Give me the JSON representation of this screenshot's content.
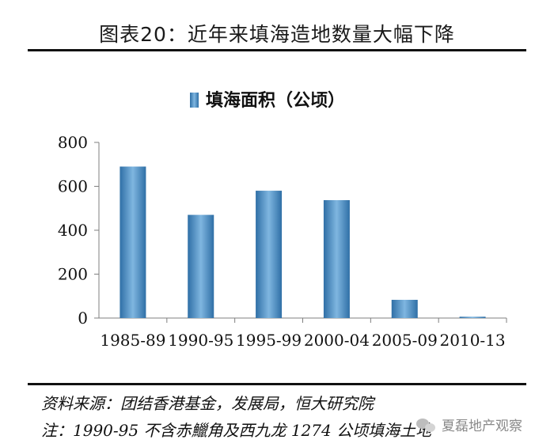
{
  "figure": {
    "title": "图表20：近年来填海造地数量大幅下降"
  },
  "chart_data": {
    "type": "bar",
    "categories": [
      "1985-89",
      "1990-95",
      "1995-99",
      "2000-04",
      "2005-09",
      "2010-13"
    ],
    "series": [
      {
        "name": "填海面积（公顷）",
        "values": [
          690,
          470,
          580,
          537,
          83,
          6
        ]
      }
    ],
    "ylim": [
      0,
      800
    ],
    "yticks": [
      0,
      200,
      400,
      600,
      800
    ],
    "grid": false,
    "legend_position": "top-center",
    "bar_color": "#4f93c6"
  },
  "footnotes": {
    "source": "资料来源：团结香港基金，发展局，恒大研究院",
    "note": "注：1990-95 不含赤鱲角及西九龙 1274 公顷填海土地"
  },
  "watermark": {
    "text": "夏磊地产观察",
    "icon": "wechat-icon"
  }
}
